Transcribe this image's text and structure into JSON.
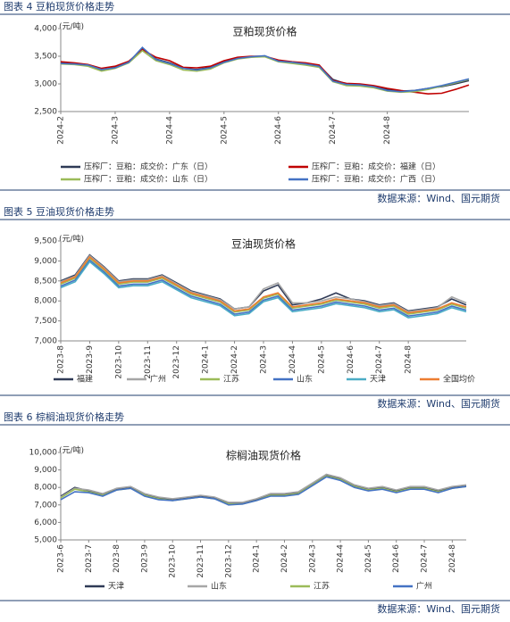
{
  "figures": [
    {
      "caption": "图表 4 豆粕现货价格走势",
      "source": "数据来源：Wind、国元期货"
    },
    {
      "caption": "图表 5 豆油现货价格走势",
      "source": "数据来源：Wind、国元期货"
    },
    {
      "caption": "图表 6 棕榈油现货价格走势",
      "source": "数据来源：Wind、国元期货"
    }
  ],
  "chart_data": [
    {
      "type": "line",
      "title": "豆粕现货价格",
      "y_unit": "(元/吨)",
      "categories": [
        "2024-2",
        null,
        null,
        null,
        "2024-3",
        null,
        null,
        null,
        "2024-4",
        null,
        null,
        null,
        "2024-5",
        null,
        null,
        null,
        "2024-6",
        null,
        null,
        null,
        "2024-7",
        null,
        null,
        null,
        "2024-8",
        null,
        null,
        null,
        null,
        null,
        null
      ],
      "ylim": [
        2500,
        4000
      ],
      "yticks": [
        {
          "value": 2500,
          "label": "2,500"
        },
        {
          "value": 3000,
          "label": "3,000"
        },
        {
          "value": 3500,
          "label": "3,500"
        },
        {
          "value": 4000,
          "label": "4,000"
        }
      ],
      "grid": false,
      "series": [
        {
          "name": "压榨厂：豆粕：成交价：广东（日）",
          "color": "#2f3a56",
          "values": [
            3380,
            3360,
            3340,
            3250,
            3300,
            3400,
            3640,
            3450,
            3380,
            3280,
            3260,
            3300,
            3400,
            3470,
            3490,
            3500,
            3420,
            3390,
            3370,
            3330,
            3080,
            3000,
            2990,
            2960,
            2900,
            2870,
            2880,
            2920,
            2950,
            3000,
            3060
          ]
        },
        {
          "name": "压榨厂：豆粕：成交价：福建（日）",
          "color": "#c00000",
          "values": [
            3400,
            3380,
            3350,
            3280,
            3320,
            3410,
            3620,
            3480,
            3420,
            3300,
            3290,
            3320,
            3420,
            3480,
            3500,
            3500,
            3430,
            3400,
            3380,
            3340,
            3060,
            3010,
            3000,
            2970,
            2920,
            2880,
            2850,
            2820,
            2830,
            2900,
            2980
          ]
        },
        {
          "name": "压榨厂：豆粕：成交价：山东（日）",
          "color": "#9bbb59",
          "values": [
            3360,
            3350,
            3320,
            3230,
            3280,
            3380,
            3600,
            3420,
            3350,
            3250,
            3230,
            3270,
            3380,
            3450,
            3480,
            3490,
            3400,
            3370,
            3340,
            3300,
            3040,
            2970,
            2960,
            2930,
            2870,
            2850,
            2860,
            2900,
            2960,
            3020,
            3080
          ]
        },
        {
          "name": "压榨厂：豆粕：成交价：广西（日）",
          "color": "#4472c4",
          "values": [
            3370,
            3360,
            3340,
            3260,
            3290,
            3390,
            3660,
            3440,
            3370,
            3280,
            3250,
            3290,
            3390,
            3460,
            3490,
            3510,
            3410,
            3390,
            3360,
            3320,
            3050,
            2990,
            2980,
            2950,
            2880,
            2860,
            2880,
            2920,
            2970,
            3030,
            3090
          ]
        }
      ]
    },
    {
      "type": "line",
      "title": "豆油现货价格",
      "y_unit": "(元/吨)",
      "categories": [
        "2023-8",
        null,
        "2023-9",
        null,
        "2023-10",
        null,
        "2023-11",
        null,
        "2023-12",
        null,
        "2024-1",
        null,
        "2024-2",
        null,
        "2024-3",
        null,
        "2024-4",
        null,
        "2024-5",
        null,
        "2024-6",
        null,
        "2024-7",
        null,
        "2024-8",
        null,
        null,
        null,
        null
      ],
      "ylim": [
        7000,
        9500
      ],
      "yticks": [
        {
          "value": 7000,
          "label": "7,000"
        },
        {
          "value": 7500,
          "label": "7,500"
        },
        {
          "value": 8000,
          "label": "8,000"
        },
        {
          "value": 8500,
          "label": "8,500"
        },
        {
          "value": 9000,
          "label": "9,000"
        },
        {
          "value": 9500,
          "label": "9,500"
        }
      ],
      "grid": false,
      "series": [
        {
          "name": "福建",
          "color": "#2f3a56",
          "values": [
            8500,
            8650,
            9150,
            8850,
            8500,
            8550,
            8550,
            8650,
            8450,
            8250,
            8150,
            8050,
            7800,
            7850,
            8250,
            8400,
            7900,
            7950,
            8050,
            8200,
            8050,
            8000,
            7900,
            7950,
            7750,
            7800,
            7850,
            8050,
            7900
          ]
        },
        {
          "name": "广州",
          "color": "#a6a6a6",
          "values": [
            8480,
            8620,
            9130,
            8830,
            8480,
            8530,
            8530,
            8630,
            8430,
            8230,
            8130,
            8030,
            7800,
            7850,
            8300,
            8450,
            7950,
            7950,
            8000,
            8100,
            8050,
            7980,
            7880,
            7930,
            7730,
            7780,
            7830,
            8100,
            7950
          ]
        },
        {
          "name": "江苏",
          "color": "#9bbb59",
          "values": [
            8420,
            8570,
            9070,
            8770,
            8420,
            8470,
            8470,
            8570,
            8370,
            8170,
            8070,
            7970,
            7720,
            7770,
            8070,
            8170,
            7820,
            7870,
            7920,
            8020,
            7970,
            7920,
            7820,
            7870,
            7670,
            7720,
            7770,
            7920,
            7820
          ]
        },
        {
          "name": "山东",
          "color": "#4472c4",
          "values": [
            8370,
            8520,
            9020,
            8720,
            8370,
            8420,
            8420,
            8520,
            8320,
            8120,
            8020,
            7920,
            7670,
            7720,
            8020,
            8120,
            7770,
            7820,
            7870,
            7970,
            7920,
            7870,
            7770,
            7820,
            7620,
            7670,
            7720,
            7870,
            7770
          ]
        },
        {
          "name": "天津",
          "color": "#4bacc6",
          "values": [
            8330,
            8480,
            8980,
            8680,
            8330,
            8380,
            8380,
            8480,
            8280,
            8080,
            7980,
            7880,
            7630,
            7680,
            7980,
            8080,
            7730,
            7780,
            7830,
            7930,
            7880,
            7830,
            7730,
            7780,
            7580,
            7630,
            7680,
            7830,
            7730
          ]
        },
        {
          "name": "全国均价",
          "color": "#ed7d31",
          "values": [
            8450,
            8600,
            9100,
            8800,
            8450,
            8500,
            8500,
            8600,
            8400,
            8200,
            8100,
            8000,
            7750,
            7800,
            8100,
            8200,
            7850,
            7900,
            7950,
            8050,
            8000,
            7950,
            7850,
            7900,
            7700,
            7750,
            7800,
            7950,
            7850
          ]
        }
      ]
    },
    {
      "type": "line",
      "title": "棕榈油现货价格",
      "y_unit": "(元/吨)",
      "categories": [
        "2023-6",
        null,
        "2023-7",
        null,
        "2023-8",
        null,
        "2023-9",
        null,
        "2023-10",
        null,
        "2023-11",
        null,
        "2023-12",
        null,
        "2024-1",
        null,
        "2024-2",
        null,
        "2024-3",
        null,
        "2024-4",
        null,
        "2024-5",
        null,
        "2024-6",
        null,
        "2024-7",
        null,
        "2024-8",
        null
      ],
      "ylim": [
        5000,
        10000
      ],
      "yticks": [
        {
          "value": 5000,
          "label": "5,000"
        },
        {
          "value": 6000,
          "label": "6,000"
        },
        {
          "value": 7000,
          "label": "7,000"
        },
        {
          "value": 8000,
          "label": "8,000"
        },
        {
          "value": 9000,
          "label": "9,000"
        },
        {
          "value": 10000,
          "label": "10,000"
        }
      ],
      "grid": false,
      "series": [
        {
          "name": "天津",
          "color": "#2f3a56",
          "values": [
            7500,
            8000,
            7800,
            7600,
            7900,
            8000,
            7600,
            7400,
            7300,
            7400,
            7500,
            7400,
            7100,
            7100,
            7300,
            7600,
            7600,
            7700,
            8200,
            8700,
            8500,
            8100,
            7900,
            8000,
            7800,
            8000,
            8000,
            7800,
            8000,
            8100
          ]
        },
        {
          "name": "山东",
          "color": "#a6a6a6",
          "values": [
            7450,
            7950,
            7850,
            7650,
            7950,
            8050,
            7650,
            7450,
            7350,
            7450,
            7550,
            7450,
            7150,
            7150,
            7350,
            7650,
            7650,
            7750,
            8250,
            8750,
            8550,
            8150,
            7950,
            8050,
            7850,
            8050,
            8050,
            7850,
            8050,
            8150
          ]
        },
        {
          "name": "江苏",
          "color": "#9bbb59",
          "values": [
            7400,
            7900,
            7750,
            7550,
            7850,
            7950,
            7550,
            7350,
            7250,
            7350,
            7450,
            7350,
            7050,
            7050,
            7250,
            7550,
            7550,
            7650,
            8150,
            8650,
            8450,
            8050,
            7850,
            7950,
            7750,
            7950,
            7950,
            7750,
            7950,
            8050
          ]
        },
        {
          "name": "广州",
          "color": "#4472c4",
          "values": [
            7300,
            7750,
            7700,
            7500,
            7850,
            7950,
            7500,
            7300,
            7250,
            7350,
            7450,
            7350,
            7000,
            7050,
            7250,
            7500,
            7500,
            7600,
            8100,
            8600,
            8400,
            8000,
            7800,
            7900,
            7700,
            7900,
            7900,
            7700,
            7950,
            8050
          ]
        }
      ]
    }
  ]
}
